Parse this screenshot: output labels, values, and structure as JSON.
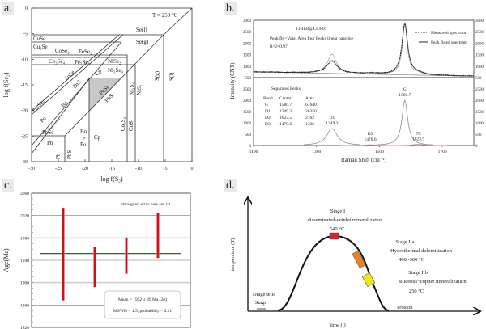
{
  "panel_labels": [
    "a.",
    "b.",
    "c.",
    "d."
  ],
  "chart_data": [
    {
      "type": "phase-diagram",
      "panel": "a",
      "xlabel": "log f(S₂)",
      "ylabel": "log f(Se₂)",
      "xlim": [
        -30,
        0
      ],
      "ylim": [
        -30,
        0
      ],
      "xticks": [
        "-30",
        "-25",
        "-20",
        "-15",
        "-10",
        "-5",
        "0"
      ],
      "yticks": [
        "0",
        "-5",
        "-10",
        "-15",
        "-20",
        "-25",
        "-30"
      ],
      "annotation": "T = 250 °C",
      "fields": [
        "Se(l)",
        "Se(g)",
        "CuSe",
        "Cu₂Se",
        "CoSe₂",
        "FeSe₂",
        "Co₃Se₄",
        "Fe₇Se₈",
        "NiSe₂",
        "Ni₃Se₄",
        "S(g)",
        "S(l)",
        "ZnSe",
        "ZnS",
        "Fe₇Se₈",
        "Po",
        "Bn",
        "Cp",
        "PbSe",
        "PbS",
        "Ni₃S₄",
        "NiS₂",
        "Co₃S₄",
        "CoS₂",
        "PbSe",
        "Pb",
        "Pb",
        "PbS",
        "Bn",
        "+",
        "Po",
        "Cp",
        "Cu₅FeS₄+Po"
      ]
    },
    {
      "type": "line",
      "panel": "b",
      "sample": "13HI04@C04-01",
      "fit_info": "Peak fit =Voigt Area  four Peaks  linear baseline",
      "r2": "R^2=0.97",
      "xlabel": "Raman Shift (cm⁻¹)",
      "ylabel": "Intensity (CNT)",
      "xlim": [
        1100,
        1800
      ],
      "xticks": [
        "1100",
        "1300",
        "1500",
        "1700"
      ],
      "top_ylim": [
        500,
        3000
      ],
      "top_yticks": [
        "500",
        "1000",
        "1500",
        "2000",
        "2500",
        "3000"
      ],
      "bottom_ylim": [
        0,
        2500
      ],
      "bottom_yticks": [
        "0",
        "500",
        "1000",
        "1500",
        "2000",
        "2500"
      ],
      "legend": [
        "Measured spectrum",
        "Peak fitted spectrum"
      ],
      "legend_position": "top-right",
      "baseline": {
        "x": [
          1100,
          1800
        ],
        "y": [
          750,
          560
        ]
      },
      "separated_peaks_title": "Separated Peaks",
      "table_headers": [
        "Band",
        "Center",
        "Area"
      ],
      "table_rows": [
        [
          "G",
          "1580.7",
          "67640"
        ],
        [
          "D1",
          "1349.3",
          "26350"
        ],
        [
          "D2",
          "1623.5",
          "2162"
        ],
        [
          "D3",
          "1470.6",
          "1306"
        ]
      ],
      "peaks": [
        {
          "band": "D1",
          "center": 1349.3,
          "height": 750,
          "label": "1349.3"
        },
        {
          "band": "D3",
          "center": 1470.6,
          "height": 30,
          "label": "1470.6"
        },
        {
          "band": "G",
          "center": 1580.7,
          "height": 2000,
          "label": "1580.7"
        },
        {
          "band": "D2",
          "center": 1623.5,
          "height": 60,
          "label": "1623.5"
        }
      ]
    },
    {
      "type": "errorbar",
      "panel": "c",
      "ylabel": "Age(Ma)",
      "ylim": [
        1820,
        2060
      ],
      "yticks": [
        "2060",
        "2020",
        "1980",
        "1940",
        "1900",
        "1860",
        "1820"
      ],
      "note": "data-gonit error bars are 1σ",
      "mean": 1952,
      "mean_text": "Mean = 1952 ± 39 Ma (2σ)",
      "mswd_text": "MSWD = 1.5, probability = 0.21",
      "bars": [
        [
          1868,
          2034
        ],
        [
          1892,
          1964
        ],
        [
          1916,
          1981
        ],
        [
          1944,
          2025
        ]
      ],
      "colors": {
        "bar": "#c8141e",
        "mean": "#1a4d1a"
      }
    },
    {
      "type": "diagram",
      "panel": "d",
      "xlabel": "time (t)",
      "ylabel": "temperature (T)",
      "stages": [
        {
          "lines": [
            "Stage I",
            "disseminated-veinlet mineralization",
            "540 °C"
          ],
          "color": "#e01c24"
        },
        {
          "lines": [
            "Stage IIa",
            "Hydrothermal dolomitization",
            "400 -300 °C"
          ],
          "color": "#e8821e"
        },
        {
          "lines": [
            "Stage IIb",
            "siliceous−copper mineralization",
            "250 °C"
          ],
          "color": "#f5e616"
        }
      ],
      "diagenetic": [
        "Diagenetic",
        "Stage"
      ],
      "erosion": "erosion"
    }
  ]
}
